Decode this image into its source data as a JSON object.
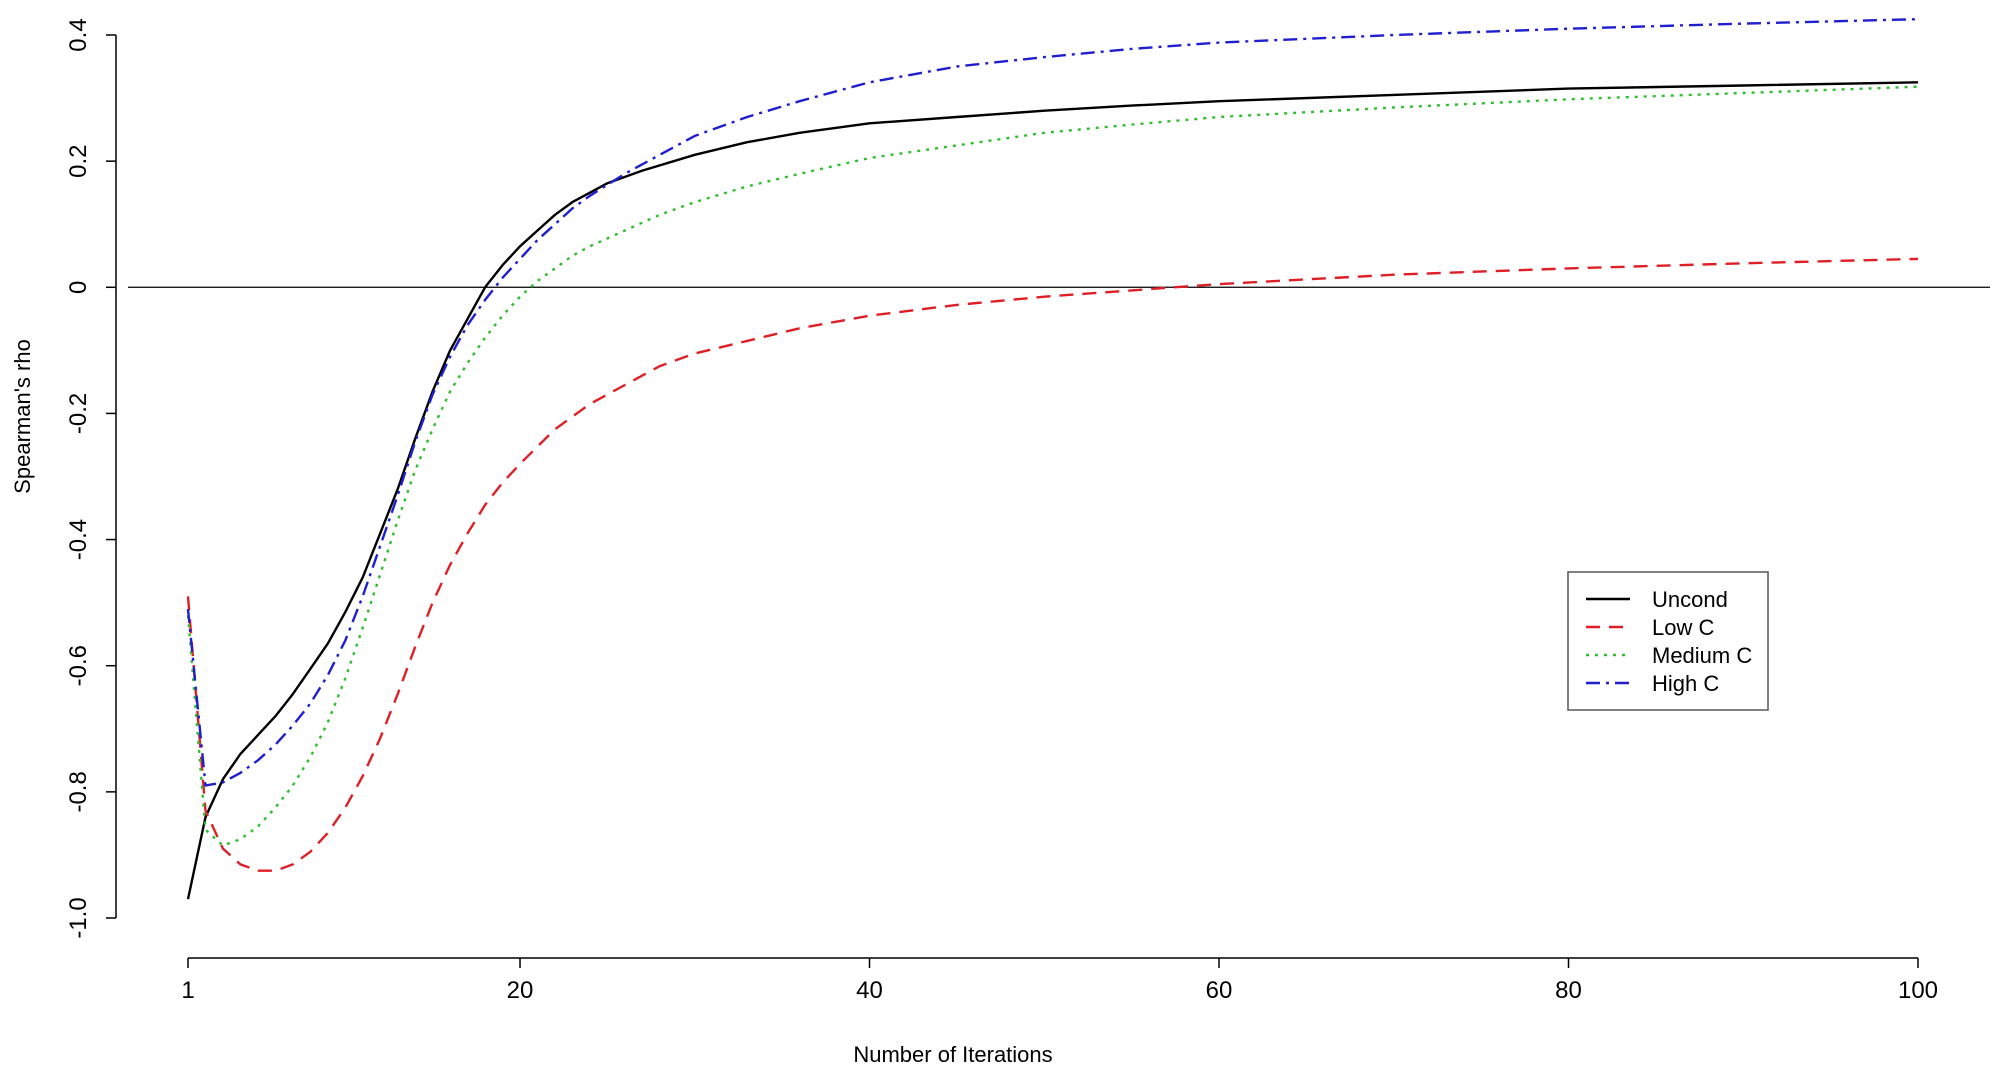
{
  "chart_data": {
    "type": "line",
    "title": "",
    "xlabel": "Number of Iterations",
    "ylabel": "Spearman's rho",
    "xlim": [
      1,
      100
    ],
    "ylim": [
      -1.0,
      0.4
    ],
    "x_ticks": [
      1,
      20,
      40,
      60,
      80,
      100
    ],
    "x_tick_labels": [
      "1",
      "20",
      "40",
      "60",
      "80",
      "100"
    ],
    "y_ticks": [
      -1.0,
      -0.8,
      -0.6,
      -0.4,
      -0.2,
      0,
      0.2,
      0.4
    ],
    "y_tick_labels": [
      "-1.0",
      "-0.8",
      "-0.6",
      "-0.4",
      "-0.2",
      "0",
      "0.2",
      "0.4"
    ],
    "reference_line_y": 0,
    "grid": false,
    "legend_position": "right",
    "series": [
      {
        "name": "Uncond",
        "color": "#000000",
        "dash": "solid",
        "x": [
          1,
          2,
          3,
          4,
          5,
          6,
          7,
          8,
          9,
          10,
          11,
          12,
          13,
          14,
          15,
          16,
          17,
          18,
          19,
          20,
          21,
          22,
          23,
          24,
          25,
          27,
          30,
          33,
          36,
          40,
          45,
          50,
          55,
          60,
          70,
          80,
          90,
          100
        ],
        "values": [
          -0.97,
          -0.84,
          -0.78,
          -0.74,
          -0.71,
          -0.68,
          -0.645,
          -0.605,
          -0.565,
          -0.515,
          -0.46,
          -0.39,
          -0.32,
          -0.24,
          -0.165,
          -0.1,
          -0.05,
          0.0,
          0.035,
          0.065,
          0.09,
          0.115,
          0.135,
          0.15,
          0.165,
          0.185,
          0.21,
          0.23,
          0.245,
          0.26,
          0.27,
          0.28,
          0.288,
          0.295,
          0.305,
          0.315,
          0.32,
          0.325
        ]
      },
      {
        "name": "Low C",
        "color": "#df1f26",
        "dash": "dashed",
        "x": [
          1,
          2,
          3,
          4,
          5,
          6,
          7,
          8,
          9,
          10,
          11,
          12,
          13,
          14,
          15,
          16,
          17,
          18,
          19,
          20,
          22,
          24,
          26,
          28,
          30,
          33,
          36,
          40,
          45,
          50,
          55,
          60,
          70,
          80,
          90,
          100
        ],
        "values": [
          -0.49,
          -0.83,
          -0.89,
          -0.915,
          -0.925,
          -0.925,
          -0.915,
          -0.895,
          -0.865,
          -0.825,
          -0.775,
          -0.715,
          -0.645,
          -0.57,
          -0.5,
          -0.44,
          -0.39,
          -0.345,
          -0.31,
          -0.28,
          -0.225,
          -0.185,
          -0.155,
          -0.125,
          -0.105,
          -0.085,
          -0.065,
          -0.045,
          -0.028,
          -0.015,
          -0.005,
          0.005,
          0.02,
          0.03,
          0.038,
          0.045
        ]
      },
      {
        "name": "Medium C",
        "color": "#2ebf2e",
        "dash": "dotted",
        "x": [
          1,
          2,
          3,
          4,
          5,
          6,
          7,
          8,
          9,
          10,
          11,
          12,
          13,
          14,
          15,
          16,
          17,
          18,
          19,
          20,
          21,
          22,
          23,
          24,
          26,
          28,
          30,
          33,
          36,
          40,
          45,
          50,
          55,
          60,
          70,
          80,
          90,
          100
        ],
        "values": [
          -0.52,
          -0.86,
          -0.885,
          -0.875,
          -0.855,
          -0.825,
          -0.79,
          -0.745,
          -0.69,
          -0.62,
          -0.54,
          -0.455,
          -0.37,
          -0.29,
          -0.225,
          -0.165,
          -0.12,
          -0.08,
          -0.045,
          -0.015,
          0.01,
          0.03,
          0.05,
          0.065,
          0.09,
          0.115,
          0.135,
          0.16,
          0.18,
          0.205,
          0.225,
          0.245,
          0.258,
          0.27,
          0.285,
          0.298,
          0.308,
          0.318
        ]
      },
      {
        "name": "High C",
        "color": "#1f1fcf",
        "dash": "dashdot",
        "x": [
          1,
          2,
          3,
          4,
          5,
          6,
          7,
          8,
          9,
          10,
          11,
          12,
          13,
          14,
          15,
          16,
          17,
          18,
          19,
          20,
          21,
          22,
          23,
          24,
          26,
          28,
          30,
          33,
          36,
          40,
          45,
          50,
          55,
          60,
          70,
          80,
          90,
          100
        ],
        "values": [
          -0.51,
          -0.79,
          -0.785,
          -0.77,
          -0.75,
          -0.725,
          -0.695,
          -0.66,
          -0.615,
          -0.56,
          -0.49,
          -0.41,
          -0.33,
          -0.245,
          -0.17,
          -0.11,
          -0.06,
          -0.02,
          0.015,
          0.045,
          0.075,
          0.1,
          0.125,
          0.145,
          0.18,
          0.21,
          0.24,
          0.27,
          0.295,
          0.325,
          0.35,
          0.365,
          0.378,
          0.388,
          0.4,
          0.41,
          0.418,
          0.425
        ]
      }
    ]
  }
}
